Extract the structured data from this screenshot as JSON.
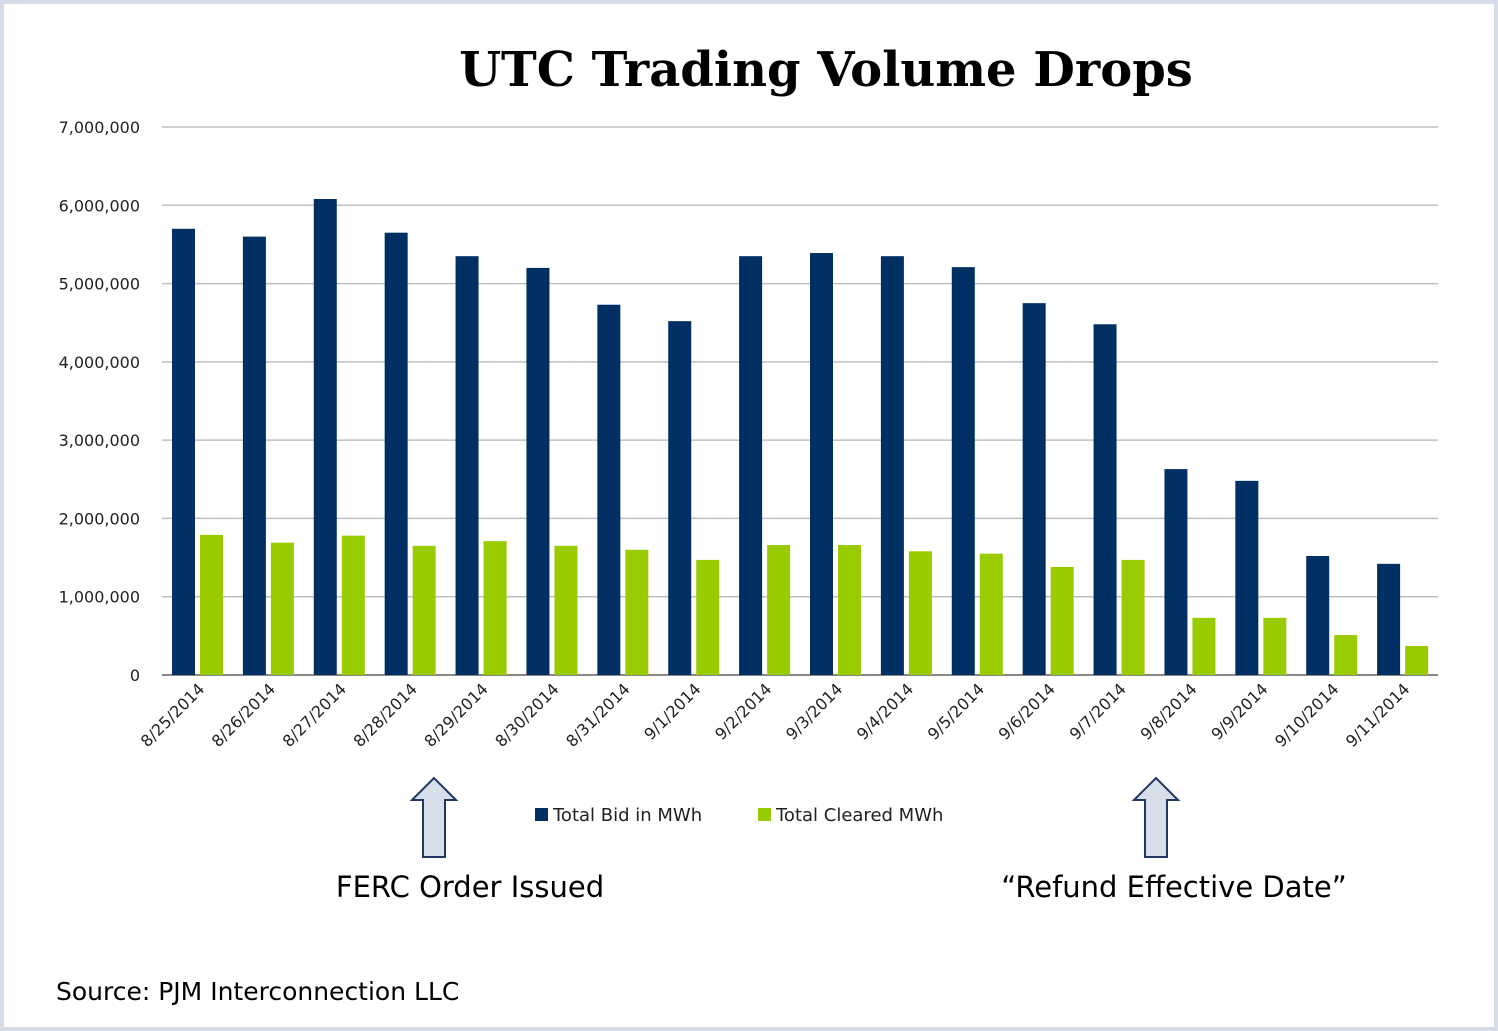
{
  "chart_data": {
    "type": "bar",
    "title": "UTC Trading Volume Drops",
    "xlabel": "",
    "ylabel": "",
    "ylim": [
      0,
      7000000
    ],
    "yticks": [
      "0",
      "1,000,000",
      "2,000,000",
      "3,000,000",
      "4,000,000",
      "5,000,000",
      "6,000,000",
      "7,000,000"
    ],
    "grid": true,
    "legend": "bottom",
    "categories": [
      "8/25/2014",
      "8/26/2014",
      "8/27/2014",
      "8/28/2014",
      "8/29/2014",
      "8/30/2014",
      "8/31/2014",
      "9/1/2014",
      "9/2/2014",
      "9/3/2014",
      "9/4/2014",
      "9/5/2014",
      "9/6/2014",
      "9/7/2014",
      "9/8/2014",
      "9/9/2014",
      "9/10/2014",
      "9/11/2014"
    ],
    "series": [
      {
        "name": "Total Bid in MWh",
        "color": "#003063",
        "values": [
          5700000,
          5600000,
          6080000,
          5650000,
          5350000,
          5200000,
          4730000,
          4520000,
          5350000,
          5390000,
          5350000,
          5210000,
          4750000,
          4480000,
          2630000,
          2480000,
          1520000,
          1420000
        ]
      },
      {
        "name": "Total Cleared MWh",
        "color": "#99cc00",
        "values": [
          1790000,
          1690000,
          1780000,
          1650000,
          1710000,
          1650000,
          1600000,
          1470000,
          1660000,
          1660000,
          1580000,
          1550000,
          1380000,
          1470000,
          730000,
          730000,
          510000,
          370000
        ]
      }
    ],
    "annotations": [
      {
        "text": "FERC Order Issued",
        "category": "8/29/2014"
      },
      {
        "text": "“Refund Effective Date”",
        "category": "9/8/2014"
      }
    ]
  },
  "source": "Source: PJM Interconnection LLC"
}
